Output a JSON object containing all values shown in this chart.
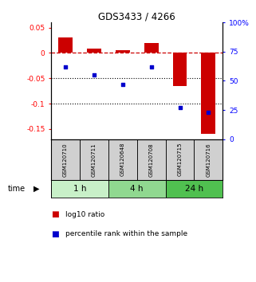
{
  "title": "GDS3433 / 4266",
  "samples": [
    "GSM120710",
    "GSM120711",
    "GSM120648",
    "GSM120708",
    "GSM120715",
    "GSM120716"
  ],
  "log10_ratio": [
    0.03,
    0.008,
    0.005,
    0.02,
    -0.065,
    -0.16
  ],
  "percentile_rank": [
    62,
    55,
    47,
    62,
    27,
    23
  ],
  "ylim_left": [
    -0.17,
    0.06
  ],
  "ylim_right": [
    0,
    100
  ],
  "yticks_left": [
    0.05,
    0,
    -0.05,
    -0.1,
    -0.15
  ],
  "yticks_right": [
    100,
    75,
    50,
    25,
    0
  ],
  "ytick_labels_left": [
    "0.05",
    "0",
    "-0.05",
    "-0.1",
    "-0.15"
  ],
  "ytick_labels_right": [
    "100%",
    "75",
    "50",
    "25",
    "0"
  ],
  "hlines": [
    -0.05,
    -0.1
  ],
  "time_groups": [
    {
      "label": "1 h",
      "cols": [
        0,
        1
      ],
      "color": "#c8f0c8"
    },
    {
      "label": "4 h",
      "cols": [
        2,
        3
      ],
      "color": "#90d890"
    },
    {
      "label": "24 h",
      "cols": [
        4,
        5
      ],
      "color": "#50c050"
    }
  ],
  "bar_color": "#cc0000",
  "scatter_color": "#0000cc",
  "dashed_line_color": "#cc0000",
  "bar_width": 0.5,
  "figsize": [
    3.21,
    3.54
  ],
  "dpi": 100
}
